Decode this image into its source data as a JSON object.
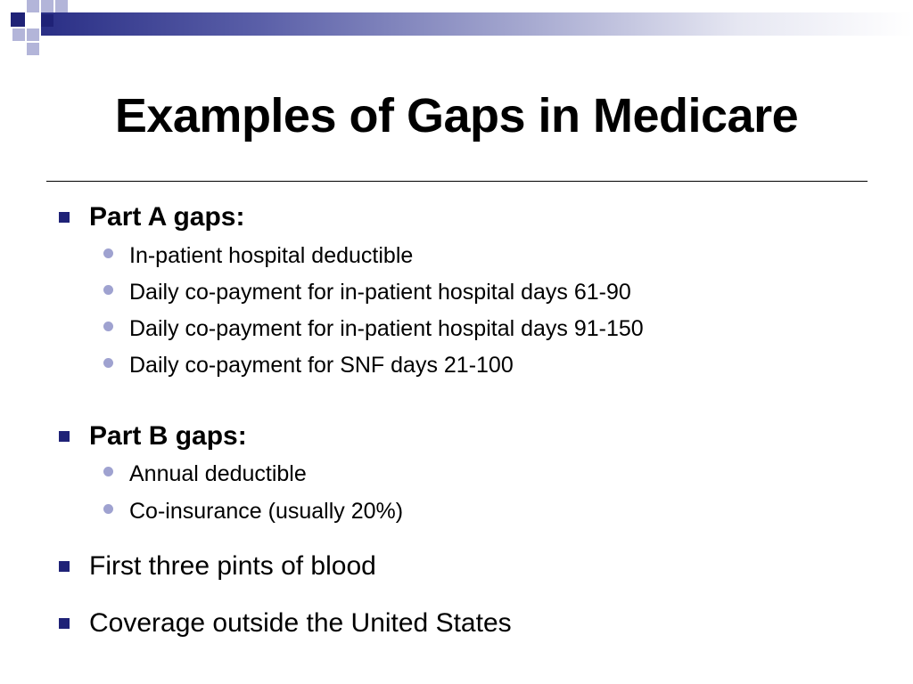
{
  "slide": {
    "title": "Examples of Gaps in Medicare",
    "accent_color": "#1f2277",
    "sub_bullet_color": "#9fa2d0",
    "items": [
      {
        "label": "Part A gaps:",
        "bold": true,
        "sub_items": [
          "In-patient hospital deductible",
          "Daily co-payment for in-patient hospital days 61-90",
          "Daily co-payment for in-patient hospital days 91-150",
          "Daily co-payment for SNF days 21-100"
        ]
      },
      {
        "label": "Part B gaps:",
        "bold": true,
        "sub_items": [
          "Annual deductible",
          "Co-insurance (usually 20%)"
        ]
      },
      {
        "label": "First three pints of blood",
        "bold": false,
        "sub_items": []
      },
      {
        "label": "Coverage outside the United States",
        "bold": false,
        "sub_items": []
      }
    ]
  }
}
